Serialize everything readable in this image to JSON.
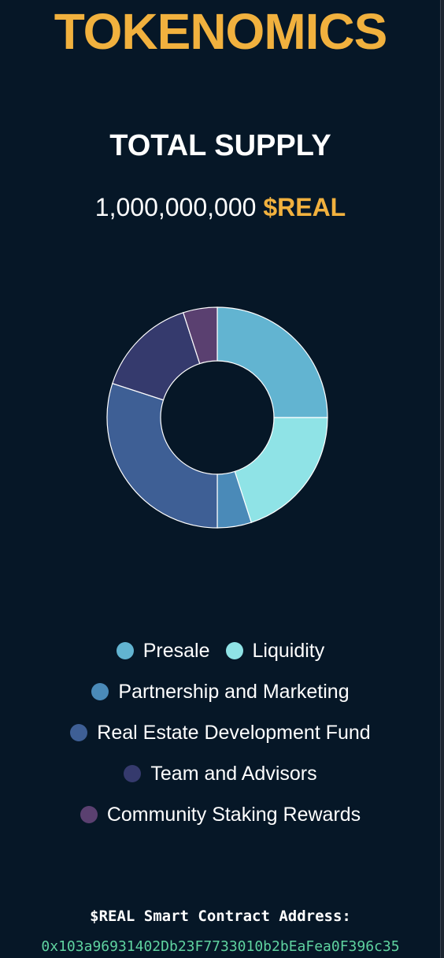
{
  "header": {
    "title": "TOKENOMICS"
  },
  "supply": {
    "heading": "TOTAL SUPPLY",
    "amount": "1,000,000,000",
    "ticker": "$REAL"
  },
  "colors": {
    "accent": "#f1b13e",
    "background": "#061727",
    "address": "#5fd3a0"
  },
  "chart_data": {
    "type": "pie",
    "title": "",
    "style": "donut",
    "legend_position": "bottom",
    "categories": [
      "Presale",
      "Liquidity",
      "Partnership and Marketing",
      "Real Estate Development Fund",
      "Team and Advisors",
      "Community Staking Rewards"
    ],
    "values": [
      25,
      20,
      5,
      30,
      15,
      5
    ],
    "colors": [
      "#62b4d1",
      "#8fe3e6",
      "#4a8ab8",
      "#3e5f95",
      "#353a6d",
      "#5a4070"
    ]
  },
  "legend": {
    "rows": [
      [
        0,
        1
      ],
      [
        2
      ],
      [
        3
      ],
      [
        4
      ],
      [
        5
      ]
    ]
  },
  "contract": {
    "label": "$REAL Smart Contract Address:",
    "address": "0x103a96931402Db23F7733010b2bEaFea0F396c35"
  }
}
